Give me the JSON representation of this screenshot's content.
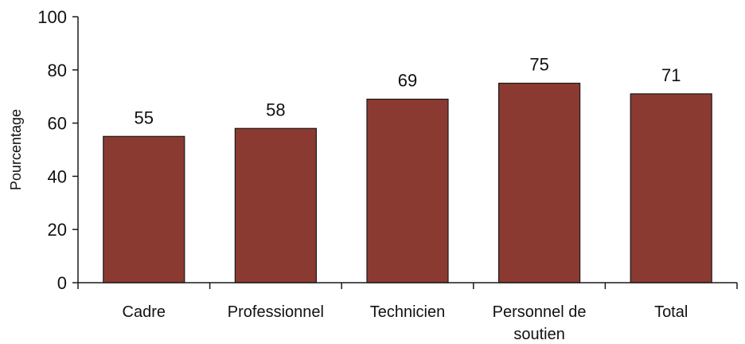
{
  "chart_data": {
    "type": "bar",
    "title": "",
    "xlabel": "",
    "ylabel": "Pourcentage",
    "categories": [
      [
        "Cadre"
      ],
      [
        "Professionnel"
      ],
      [
        "Technicien"
      ],
      [
        "Personnel de",
        "soutien"
      ],
      [
        "Total"
      ]
    ],
    "values": [
      55,
      58,
      69,
      75,
      71
    ],
    "data_labels": [
      "55",
      "58",
      "69",
      "75",
      "71"
    ],
    "ylim": [
      0,
      100
    ],
    "yticks": [
      0,
      20,
      40,
      60,
      80,
      100
    ],
    "grid": false,
    "legend": "none",
    "bar_color": "#8b3a32",
    "bar_edge_color": "#1a1a1a",
    "axis_color": "#1a1a1a"
  }
}
